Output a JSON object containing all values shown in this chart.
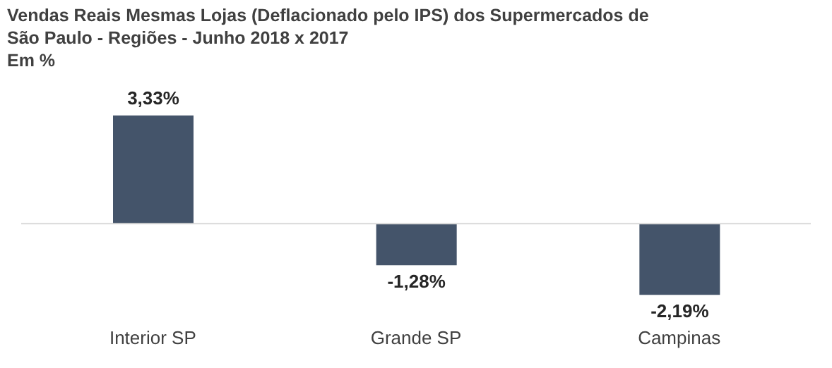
{
  "chart_data": {
    "type": "bar",
    "title": "Vendas Reais  Mesmas Lojas (Deflacionado pelo IPS) dos Supermercados de São Paulo - Regiões - Junho 2018 x 2017",
    "subtitle": "Em %",
    "categories": [
      "Interior SP",
      "Grande SP",
      "Campinas"
    ],
    "values": [
      3.33,
      -1.28,
      -2.19
    ],
    "value_labels": [
      "3,33%",
      "-1,28%",
      "-2,19%"
    ],
    "color": "#44546a",
    "grid": false,
    "legend": false
  }
}
